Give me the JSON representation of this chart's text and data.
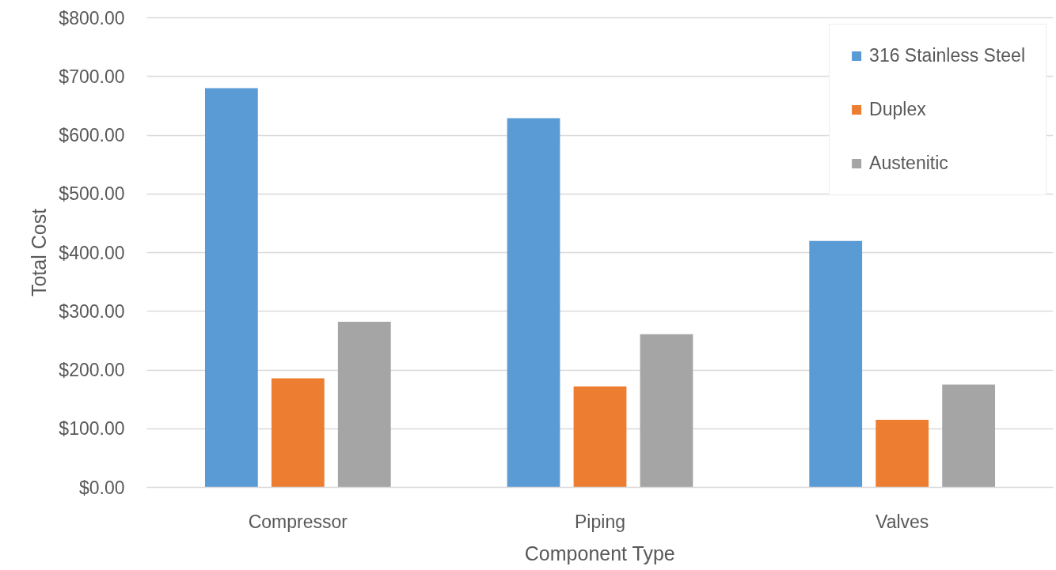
{
  "chart_data": {
    "type": "bar",
    "xlabel": "Component Type",
    "ylabel": "Total Cost",
    "categories": [
      "Compressor",
      "Piping",
      "Valves"
    ],
    "series": [
      {
        "name": "316 Stainless Steel",
        "color": "#5b9bd5",
        "values": [
          680,
          629,
          420
        ]
      },
      {
        "name": "Duplex",
        "color": "#ed7d31",
        "values": [
          186,
          172,
          115
        ]
      },
      {
        "name": "Austenitic",
        "color": "#a5a5a5",
        "values": [
          282,
          261,
          175
        ]
      }
    ],
    "ylim": [
      0,
      800
    ],
    "yticks": [
      {
        "value": 0,
        "label": "$0.00"
      },
      {
        "value": 100,
        "label": "$100.00"
      },
      {
        "value": 200,
        "label": "$200.00"
      },
      {
        "value": 300,
        "label": "$300.00"
      },
      {
        "value": 400,
        "label": "$400.00"
      },
      {
        "value": 500,
        "label": "$500.00"
      },
      {
        "value": 600,
        "label": "$600.00"
      },
      {
        "value": 700,
        "label": "$700.00"
      },
      {
        "value": 800,
        "label": "$800.00"
      }
    ],
    "grid": "y",
    "legend": "top right"
  }
}
